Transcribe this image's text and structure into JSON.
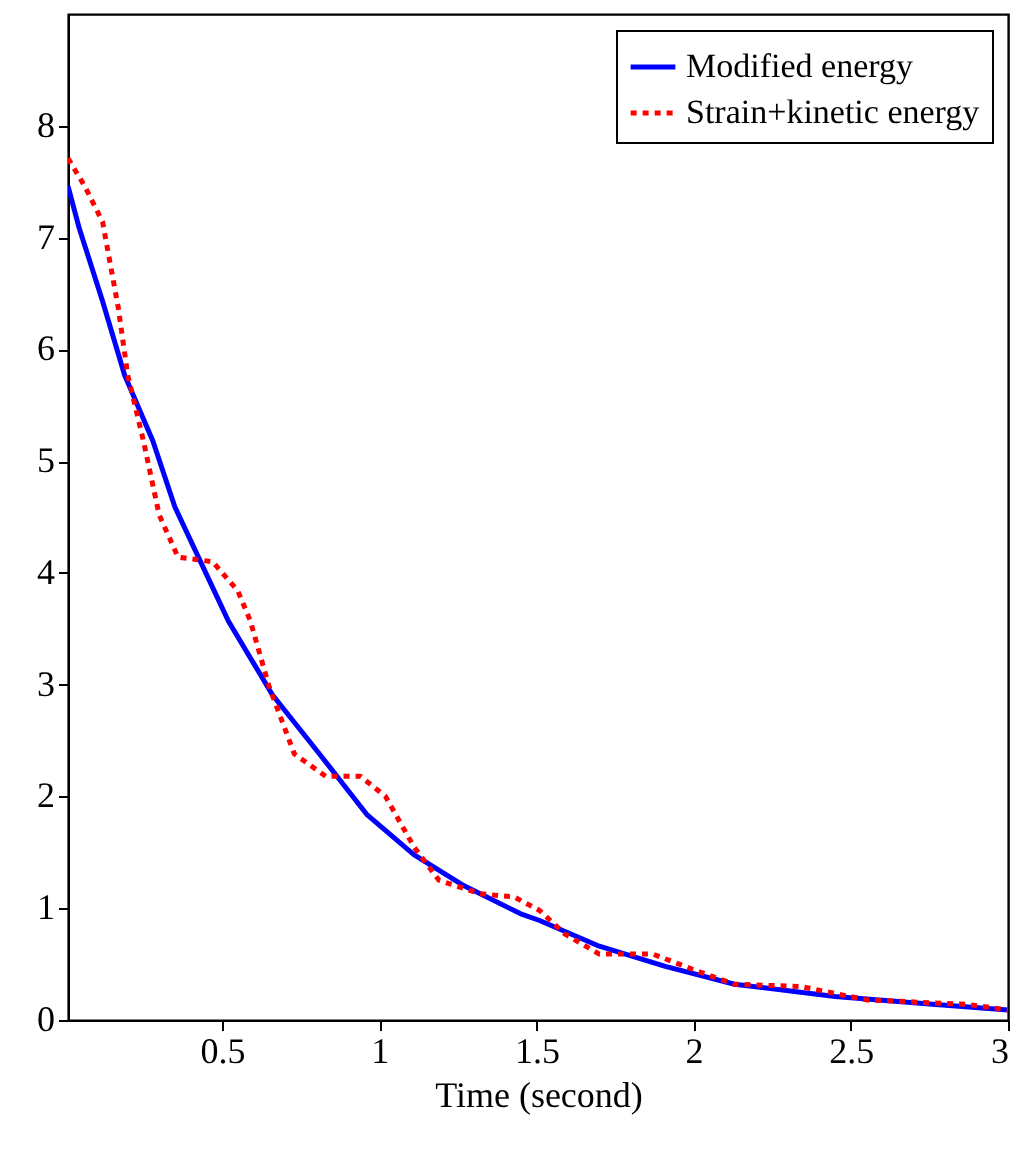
{
  "chart_data": {
    "type": "line",
    "xlabel": "Time (second)",
    "xlim": [
      0.01,
      3
    ],
    "xticks": [
      0.5,
      1,
      1.5,
      2,
      2.5,
      3
    ],
    "ylim": [
      0,
      9
    ],
    "yticks": [
      0,
      1,
      2,
      3,
      4,
      5,
      6,
      7,
      8
    ],
    "legend": "top right",
    "grid": false,
    "series": [
      {
        "name": "Modified energy",
        "color": "#0000ff",
        "line_style": "solid",
        "x": [
          0.01,
          0.045,
          0.12,
          0.19,
          0.28,
          0.35,
          0.49,
          0.52,
          0.66,
          0.81,
          0.96,
          1.11,
          1.27,
          1.45,
          1.51,
          1.7,
          1.91,
          2.13,
          2.45,
          2.76,
          3.0
        ],
        "values": [
          7.46,
          7.09,
          6.43,
          5.77,
          5.18,
          4.59,
          3.75,
          3.57,
          2.91,
          2.38,
          1.84,
          1.48,
          1.2,
          0.95,
          0.89,
          0.66,
          0.48,
          0.32,
          0.21,
          0.14,
          0.09
        ]
      },
      {
        "name": "Strain+kinetic energy",
        "color": "#ff0000",
        "line_style": "dotted",
        "x": [
          0.01,
          0.065,
          0.12,
          0.17,
          0.2,
          0.25,
          0.3,
          0.36,
          0.47,
          0.55,
          0.59,
          0.65,
          0.73,
          0.83,
          0.94,
          1.02,
          1.11,
          1.19,
          1.32,
          1.43,
          1.51,
          1.59,
          1.7,
          1.87,
          2.0,
          2.13,
          2.34,
          2.55,
          2.87,
          3.0
        ],
        "values": [
          7.71,
          7.45,
          7.14,
          6.37,
          5.77,
          5.18,
          4.52,
          4.14,
          4.1,
          3.84,
          3.57,
          2.98,
          2.38,
          2.18,
          2.18,
          2.0,
          1.55,
          1.25,
          1.13,
          1.1,
          0.98,
          0.77,
          0.59,
          0.59,
          0.45,
          0.32,
          0.3,
          0.18,
          0.14,
          0.09
        ]
      }
    ]
  }
}
